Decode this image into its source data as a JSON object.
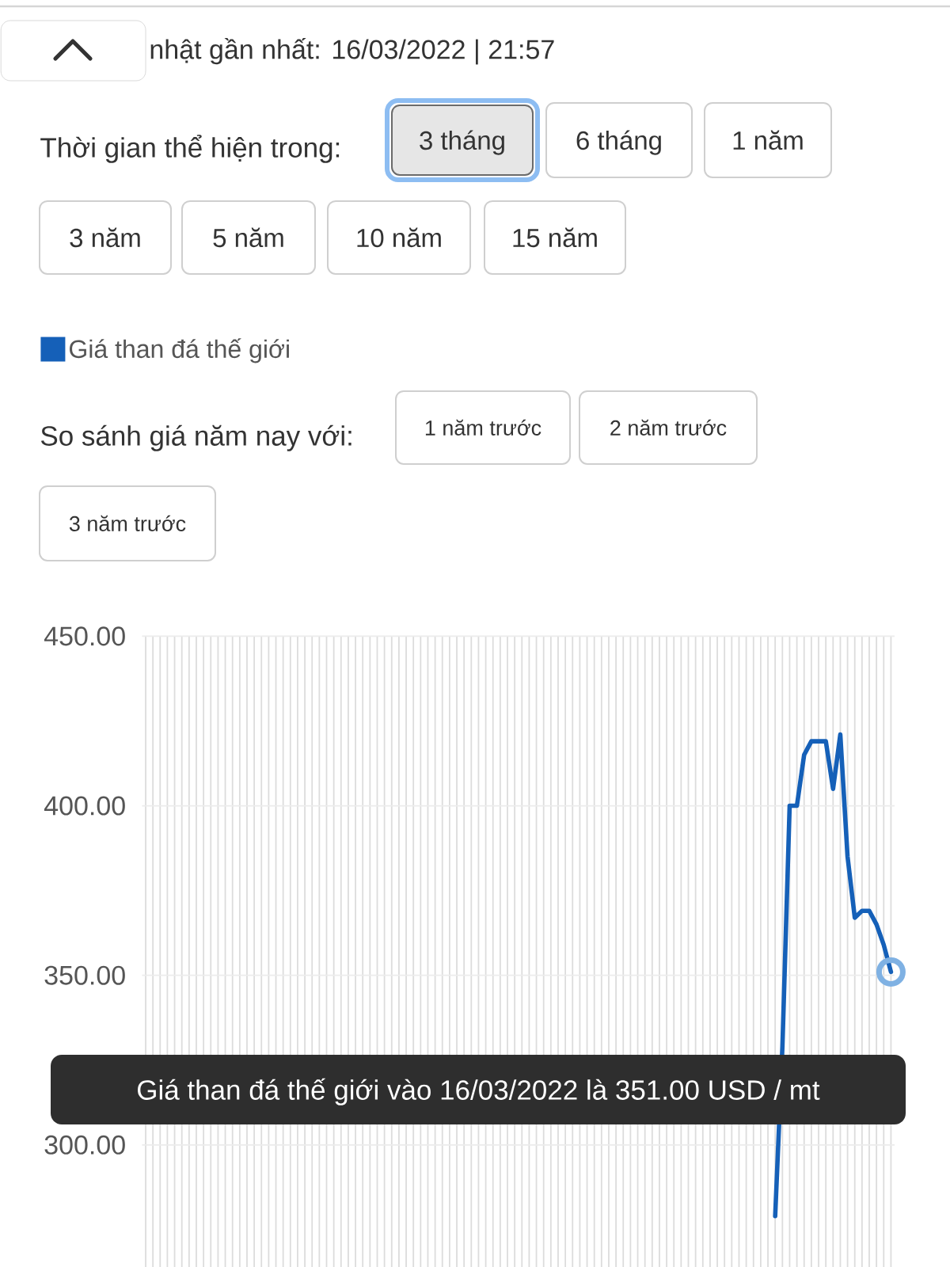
{
  "chart_data": {
    "type": "line",
    "title": "nhật gần nhất: 16/03/2022 | 21:57",
    "categories": [
      null,
      null,
      null,
      null,
      null,
      null,
      null,
      null,
      null,
      null,
      null,
      null,
      null,
      null,
      null,
      null,
      null,
      null,
      null,
      null,
      null,
      null,
      null,
      null,
      null,
      null,
      null,
      null,
      null,
      null,
      null,
      null,
      null,
      null,
      null,
      null,
      null,
      null,
      null,
      null,
      null,
      null,
      null,
      null,
      null,
      null,
      null,
      null,
      null,
      null,
      null,
      null,
      null,
      null,
      null,
      null,
      null,
      null,
      null,
      null,
      null,
      null,
      null,
      null,
      null,
      null,
      null,
      null,
      null,
      null,
      null,
      null,
      null,
      null,
      null,
      null,
      null,
      null,
      null,
      null,
      null,
      null,
      null,
      null,
      null,
      null,
      null,
      null,
      null,
      null,
      null,
      null,
      null,
      null,
      null,
      null,
      null,
      null,
      null,
      null,
      null,
      null,
      null,
      null
    ],
    "series": [
      {
        "name": "Giá than đá thế giới",
        "color": "#1560b8",
        "values": [
          null,
          null,
          null,
          null,
          null,
          null,
          null,
          null,
          null,
          null,
          null,
          null,
          null,
          null,
          null,
          null,
          null,
          null,
          null,
          null,
          null,
          null,
          null,
          null,
          null,
          null,
          null,
          null,
          null,
          null,
          null,
          null,
          null,
          null,
          null,
          null,
          null,
          null,
          null,
          null,
          null,
          null,
          null,
          null,
          null,
          null,
          null,
          null,
          null,
          null,
          null,
          null,
          null,
          null,
          null,
          null,
          null,
          null,
          null,
          null,
          null,
          null,
          null,
          null,
          null,
          null,
          null,
          null,
          null,
          null,
          null,
          null,
          null,
          null,
          null,
          null,
          null,
          null,
          null,
          null,
          null,
          null,
          null,
          null,
          null,
          null,
          null,
          279,
          329,
          400,
          400,
          415,
          419,
          419,
          419,
          405,
          421,
          385,
          367,
          369,
          369,
          365,
          359,
          351
        ]
      }
    ],
    "ylim": [
      264,
      450
    ],
    "yticks": [
      {
        "value": 300,
        "label": "300.00"
      },
      {
        "value": 350,
        "label": "350.00"
      },
      {
        "value": 400,
        "label": "400.00"
      },
      {
        "value": 450,
        "label": "450.00"
      }
    ],
    "grid": true,
    "legend": "top left",
    "tick_labels": "y",
    "annotations": [
      "Thời gian thể hiện trong:",
      "3 tháng",
      "6 tháng",
      "1 năm",
      "3 năm",
      "5 năm",
      "10 năm",
      "15 năm",
      "So sánh giá năm nay với:",
      "1 năm trước",
      "2 năm trước",
      "3 năm trước",
      "Giá than đá thế giới vào 16/03/2022 là 351.00 USD / mt"
    ]
  }
}
